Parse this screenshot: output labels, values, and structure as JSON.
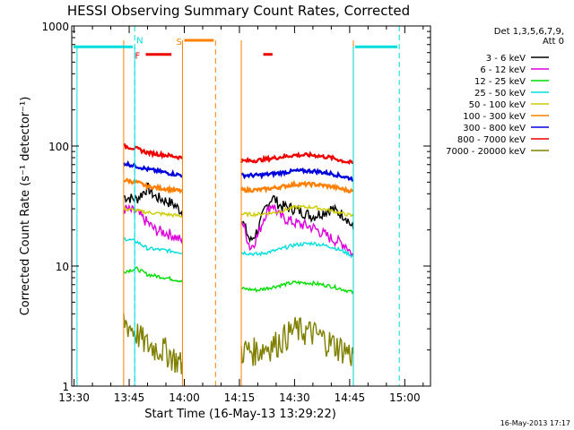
{
  "chart_data": {
    "type": "line",
    "title": "HESSI Observing Summary Count Rates, Corrected",
    "xlabel": "Start Time (16-May-13 13:29:22)",
    "ylabel": "Corrected Count Rate (s⁻¹ detector⁻¹)",
    "x_ticks": [
      "13:30",
      "13:45",
      "14:00",
      "14:15",
      "14:30",
      "14:45",
      "15:00"
    ],
    "x_tick_minutes": [
      30,
      45,
      60,
      75,
      90,
      105,
      120
    ],
    "x_range_minutes": [
      29.37,
      127
    ],
    "y_scale": "log",
    "ylim": [
      1,
      1000
    ],
    "y_ticks": [
      "1",
      "10",
      "100",
      "1000"
    ],
    "y_tick_values": [
      1,
      10,
      100,
      1000
    ],
    "legend_header": [
      "Det 1,3,5,6,7,9,",
      "Att 0"
    ],
    "legend_position": "top-right",
    "timestamp": "16-May-2013 17:17",
    "segments": [
      [
        43.5,
        59.5
      ],
      [
        75.5,
        106.0
      ]
    ],
    "series": [
      {
        "name": "3 - 6 keV",
        "color": "#000000",
        "seg1": [
          [
            43.5,
            38
          ],
          [
            47,
            36
          ],
          [
            50,
            45
          ],
          [
            52,
            38
          ],
          [
            55,
            35
          ],
          [
            57,
            33
          ],
          [
            59.5,
            28
          ]
        ],
        "seg2": [
          [
            75.5,
            25
          ],
          [
            78,
            16
          ],
          [
            80,
            20
          ],
          [
            82,
            30
          ],
          [
            84,
            38
          ],
          [
            86,
            32
          ],
          [
            90,
            30
          ],
          [
            95,
            26
          ],
          [
            100,
            30
          ],
          [
            104,
            26
          ],
          [
            106,
            20
          ]
        ]
      },
      {
        "name": "6 - 12 keV",
        "color": "#dd00dd",
        "seg1": [
          [
            43.5,
            30
          ],
          [
            47,
            28
          ],
          [
            50,
            23
          ],
          [
            52,
            20
          ],
          [
            55,
            19
          ],
          [
            57,
            18
          ],
          [
            59.5,
            16
          ]
        ],
        "seg2": [
          [
            75.5,
            25
          ],
          [
            78,
            14
          ],
          [
            80,
            18
          ],
          [
            82,
            27
          ],
          [
            84,
            33
          ],
          [
            86,
            26
          ],
          [
            90,
            23
          ],
          [
            95,
            21
          ],
          [
            100,
            17
          ],
          [
            104,
            15
          ],
          [
            106,
            12
          ]
        ]
      },
      {
        "name": "12 - 25 keV",
        "color": "#00dd00",
        "seg1": [
          [
            43.5,
            9
          ],
          [
            47,
            9.5
          ],
          [
            50,
            8.5
          ],
          [
            55,
            8
          ],
          [
            59.5,
            7.5
          ]
        ],
        "seg2": [
          [
            75.5,
            6.5
          ],
          [
            80,
            6.3
          ],
          [
            85,
            6.8
          ],
          [
            90,
            7.3
          ],
          [
            95,
            7.2
          ],
          [
            100,
            6.8
          ],
          [
            104,
            6.3
          ],
          [
            106,
            6
          ]
        ]
      },
      {
        "name": "25 - 50 keV",
        "color": "#00dddd",
        "seg1": [
          [
            43.5,
            17
          ],
          [
            47,
            16
          ],
          [
            50,
            14
          ],
          [
            55,
            13.5
          ],
          [
            59.5,
            13
          ]
        ],
        "seg2": [
          [
            75.5,
            13
          ],
          [
            80,
            12.5
          ],
          [
            85,
            13.5
          ],
          [
            90,
            15
          ],
          [
            95,
            15.5
          ],
          [
            100,
            14.5
          ],
          [
            104,
            13
          ],
          [
            106,
            12
          ]
        ]
      },
      {
        "name": "50 - 100 keV",
        "color": "#cccc00",
        "seg1": [
          [
            43.5,
            30
          ],
          [
            47,
            29
          ],
          [
            50,
            28
          ],
          [
            55,
            27
          ],
          [
            59.5,
            26
          ]
        ],
        "seg2": [
          [
            75.5,
            27
          ],
          [
            80,
            27
          ],
          [
            85,
            28
          ],
          [
            90,
            31
          ],
          [
            95,
            31
          ],
          [
            100,
            29
          ],
          [
            104,
            27
          ],
          [
            106,
            26
          ]
        ]
      },
      {
        "name": "100 - 300 keV",
        "color": "#ff8000",
        "seg1": [
          [
            43.5,
            52
          ],
          [
            47,
            50
          ],
          [
            50,
            46
          ],
          [
            55,
            44
          ],
          [
            59.5,
            42
          ]
        ],
        "seg2": [
          [
            75.5,
            43
          ],
          [
            80,
            43
          ],
          [
            85,
            45
          ],
          [
            90,
            48
          ],
          [
            95,
            48
          ],
          [
            100,
            46
          ],
          [
            104,
            43
          ],
          [
            106,
            42
          ]
        ]
      },
      {
        "name": "300 - 800 keV",
        "color": "#0000dd",
        "seg1": [
          [
            43.5,
            72
          ],
          [
            47,
            68
          ],
          [
            50,
            64
          ],
          [
            55,
            60
          ],
          [
            59.5,
            57
          ]
        ],
        "seg2": [
          [
            75.5,
            57
          ],
          [
            80,
            57
          ],
          [
            85,
            59
          ],
          [
            90,
            62
          ],
          [
            95,
            62
          ],
          [
            100,
            59
          ],
          [
            104,
            55
          ],
          [
            106,
            53
          ]
        ]
      },
      {
        "name": "800 - 7000 keV",
        "color": "#ee0000",
        "seg1": [
          [
            43.5,
            100
          ],
          [
            47,
            95
          ],
          [
            50,
            88
          ],
          [
            55,
            84
          ],
          [
            59.5,
            80
          ]
        ],
        "seg2": [
          [
            75.5,
            75
          ],
          [
            80,
            76
          ],
          [
            85,
            80
          ],
          [
            90,
            84
          ],
          [
            95,
            84
          ],
          [
            100,
            80
          ],
          [
            104,
            74
          ],
          [
            106,
            72
          ]
        ]
      },
      {
        "name": "7000 - 20000 keV",
        "color": "#808000",
        "seg1": [
          [
            43.5,
            3.5
          ],
          [
            47,
            2.8
          ],
          [
            50,
            2.2
          ],
          [
            55,
            2
          ],
          [
            59.5,
            1.5
          ]
        ],
        "seg2": [
          [
            75.5,
            2
          ],
          [
            80,
            2
          ],
          [
            85,
            2.3
          ],
          [
            90,
            3
          ],
          [
            95,
            2.8
          ],
          [
            100,
            2.3
          ],
          [
            104,
            2
          ],
          [
            106,
            1.8
          ]
        ]
      }
    ],
    "flags": [
      {
        "label": "F",
        "color": "#ee0000",
        "x": 49.5,
        "x2": 56.5,
        "y": 580
      },
      {
        "label": "N",
        "color": "#00dddd",
        "x": 46.5,
        "y": 780
      },
      {
        "label": "S",
        "color": "#ff8000",
        "x": 60,
        "x2": 68,
        "y": 760
      },
      {
        "label": "",
        "color": "#ee0000",
        "x": 81.5,
        "x2": 84,
        "y": 580
      }
    ],
    "flag_bars_cyan": [
      [
        29.37,
        46
      ],
      [
        106,
        118
      ]
    ],
    "flag_level_cyan": 670,
    "vlines_cyan": [
      46.5,
      118.5
    ],
    "vlines_orange": [
      68.5
    ],
    "box_lines_orange": [
      43.5,
      59.5,
      75.5,
      106
    ]
  }
}
